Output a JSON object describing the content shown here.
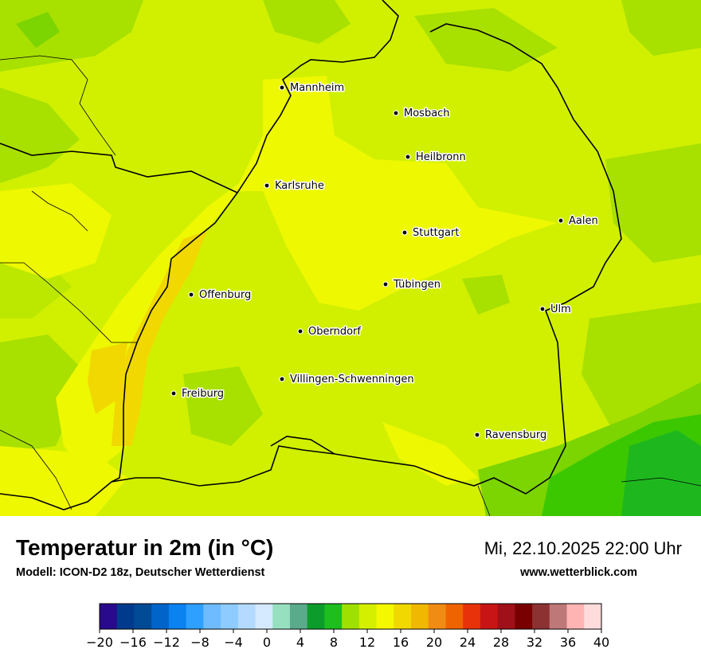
{
  "title": "Temperatur in 2m (in °C)",
  "subtitle": "Modell: ICON-D2 18z, Deutscher Wetterdienst",
  "datetime": "Mi, 22.10.2025 22:00 Uhr",
  "website": "www.wetterblick.com",
  "colors": {
    "base": "#d0f000",
    "yellow": "#f0f800",
    "orange_yellow": "#f0d800",
    "light_green": "#a8e000",
    "green": "#3cc800",
    "dark_green": "#1eb81e",
    "border": "#000000"
  },
  "cities": [
    {
      "name": "Mannheim"
    },
    {
      "name": "Mosbach"
    },
    {
      "name": "Heilbronn"
    },
    {
      "name": "Karlsruhe"
    },
    {
      "name": "Aalen"
    },
    {
      "name": "Stuttgart"
    },
    {
      "name": "Tübingen"
    },
    {
      "name": "Offenburg"
    },
    {
      "name": "Ulm"
    },
    {
      "name": "Oberndorf"
    },
    {
      "name": "Villingen-Schwenningen"
    },
    {
      "name": "Freiburg"
    },
    {
      "name": "Ravensburg"
    }
  ],
  "legend": {
    "ticks": [
      "−20",
      "−16",
      "−12",
      "−8",
      "−4",
      "0",
      "4",
      "8",
      "12",
      "16",
      "20",
      "24",
      "28",
      "32",
      "36",
      "40"
    ],
    "colors": [
      "#2a0a8c",
      "#003a8c",
      "#004a96",
      "#0064c8",
      "#0a82f0",
      "#2ea0ff",
      "#6ebcff",
      "#8ecbff",
      "#b4daff",
      "#d4e9ff",
      "#96e0c0",
      "#5aaa8c",
      "#0c9c2c",
      "#1ebe1e",
      "#a0e000",
      "#d4f000",
      "#f4f800",
      "#f0d800",
      "#f0b800",
      "#f08c14",
      "#f06400",
      "#e8320a",
      "#c81414",
      "#a01018",
      "#780000",
      "#8c3232",
      "#be7878",
      "#ffb4b4",
      "#ffdcdc"
    ]
  }
}
